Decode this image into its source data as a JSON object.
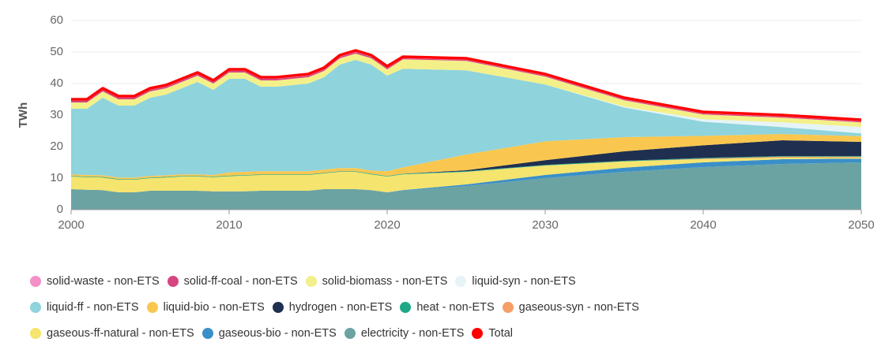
{
  "chart_data": {
    "type": "stacked-area",
    "y_label": "TWh",
    "x": [
      2000,
      2001,
      2002,
      2003,
      2004,
      2005,
      2006,
      2007,
      2008,
      2009,
      2010,
      2011,
      2012,
      2013,
      2014,
      2015,
      2016,
      2017,
      2018,
      2019,
      2020,
      2021,
      2025,
      2030,
      2035,
      2040,
      2045,
      2050
    ],
    "xlim": [
      2000,
      2050
    ],
    "xticks": [
      2000,
      2010,
      2020,
      2030,
      2040,
      2050
    ],
    "ylim": [
      0,
      60
    ],
    "yticks": [
      0,
      10,
      20,
      30,
      40,
      50,
      60
    ],
    "grid": true,
    "legend": "bottom",
    "series": [
      {
        "name": "solid-waste - non-ETS",
        "color": "#f48fc8",
        "values": [
          0.5,
          0.5,
          0.5,
          0.5,
          0.5,
          0.5,
          0.5,
          0.5,
          0.5,
          0.5,
          0.5,
          0.5,
          0.5,
          0.5,
          0.5,
          0.5,
          0.5,
          0.5,
          0.5,
          0.5,
          0.5,
          0.5,
          0.5,
          0.5,
          0.5,
          0.5,
          0.5,
          0.5
        ]
      },
      {
        "name": "solid-ff-coal - non-ETS",
        "color": "#d6457f",
        "values": [
          0.5,
          0.5,
          0.5,
          0.5,
          0.5,
          0.5,
          0.5,
          0.5,
          0.5,
          0.5,
          0.5,
          0.5,
          0.5,
          0.5,
          0.5,
          0.5,
          0.5,
          0.5,
          0.5,
          0.5,
          0.5,
          0.3,
          0.3,
          0.3,
          0.3,
          0.3,
          0.3,
          0.3
        ]
      },
      {
        "name": "solid-biomass - non-ETS",
        "color": "#f3f08a",
        "values": [
          2,
          2,
          2,
          2,
          2,
          2,
          2,
          2,
          2,
          2,
          2,
          2,
          2,
          2,
          2,
          2,
          2,
          2,
          2,
          2,
          2,
          3,
          3,
          2.5,
          2,
          1.5,
          1.5,
          1.5
        ]
      },
      {
        "name": "liquid-syn - non-ETS",
        "color": "#e6f4f8",
        "values": [
          0,
          0,
          0,
          0,
          0,
          0,
          0,
          0,
          0,
          0,
          0,
          0,
          0,
          0,
          0,
          0,
          0,
          0,
          0,
          0,
          0,
          0,
          0,
          0,
          0.3,
          0.8,
          1.5,
          2
        ]
      },
      {
        "name": "liquid-ff - non-ETS",
        "color": "#8fd3dc",
        "values": [
          20.8,
          21,
          24.6,
          22.8,
          22.8,
          24.8,
          25.6,
          27.3,
          29.3,
          27,
          29.7,
          29.5,
          26.8,
          26.8,
          27.3,
          27.8,
          29.3,
          32.8,
          34.3,
          33.6,
          30.3,
          31.3,
          26.7,
          18,
          9.4,
          4.5,
          2.2,
          0.9
        ]
      },
      {
        "name": "liquid-bio - non-ETS",
        "color": "#f9c74f",
        "values": [
          0.5,
          0.5,
          0.5,
          0.5,
          0.5,
          0.5,
          0.5,
          0.5,
          0.5,
          0.5,
          1,
          1,
          1,
          1,
          1,
          1,
          1,
          1,
          1,
          1,
          1.5,
          2,
          5,
          6,
          4.5,
          3,
          2,
          1.8
        ]
      },
      {
        "name": "hydrogen - non-ETS",
        "color": "#1f2f4f",
        "values": [
          0,
          0,
          0,
          0,
          0,
          0,
          0,
          0,
          0,
          0,
          0,
          0,
          0,
          0,
          0,
          0,
          0,
          0,
          0,
          0,
          0,
          0,
          0.3,
          1.5,
          3,
          4,
          5,
          4.5
        ]
      },
      {
        "name": "heat - non-ETS",
        "color": "#1fa888",
        "values": [
          0.2,
          0.2,
          0.2,
          0.2,
          0.2,
          0.2,
          0.2,
          0.2,
          0.2,
          0.2,
          0.2,
          0.2,
          0.2,
          0.2,
          0.2,
          0.2,
          0.2,
          0.2,
          0.2,
          0.2,
          0.2,
          0.2,
          0.2,
          0.2,
          0.2,
          0.2,
          0.2,
          0.2
        ]
      },
      {
        "name": "gaseous-syn - non-ETS",
        "color": "#f59e68",
        "values": [
          0,
          0,
          0,
          0,
          0,
          0,
          0,
          0,
          0,
          0,
          0,
          0,
          0,
          0,
          0,
          0,
          0,
          0,
          0,
          0,
          0,
          0,
          0,
          0,
          0,
          0.2,
          0.3,
          0.3
        ]
      },
      {
        "name": "gaseous-ff-natural - non-ETS",
        "color": "#f5e46e",
        "values": [
          4,
          4,
          4,
          4,
          4,
          4,
          4.2,
          4.5,
          4.5,
          4.5,
          4.8,
          5,
          5,
          5,
          5,
          5,
          5,
          5.5,
          5.5,
          5,
          5,
          5,
          4,
          3,
          2,
          1,
          0.5,
          0.3
        ]
      },
      {
        "name": "gaseous-bio - non-ETS",
        "color": "#3a8fc8",
        "values": [
          0,
          0,
          0,
          0,
          0,
          0,
          0,
          0,
          0,
          0,
          0,
          0,
          0,
          0,
          0,
          0,
          0,
          0,
          0,
          0,
          0,
          0.2,
          0.5,
          1,
          1.3,
          1.5,
          1.5,
          1.2
        ]
      },
      {
        "name": "electricity - non-ETS",
        "color": "#6ba3a3",
        "values": [
          6.5,
          6.3,
          6.2,
          5.5,
          5.5,
          6,
          6,
          6,
          6,
          5.8,
          5.8,
          5.8,
          6,
          6,
          6,
          6,
          6.5,
          6.5,
          6.5,
          6.2,
          5.5,
          6,
          7.5,
          10,
          12,
          13.5,
          14.5,
          15
        ]
      },
      {
        "name": "Total",
        "color": "#ff0000",
        "line": true,
        "values": [
          35,
          35,
          38.5,
          36,
          36,
          38.5,
          39.5,
          41.5,
          43.5,
          41,
          44.5,
          44.5,
          42,
          42,
          42.5,
          43,
          45,
          49,
          50.5,
          49,
          45.5,
          48.5,
          48,
          43,
          35.5,
          31,
          30,
          28.5
        ]
      }
    ]
  }
}
